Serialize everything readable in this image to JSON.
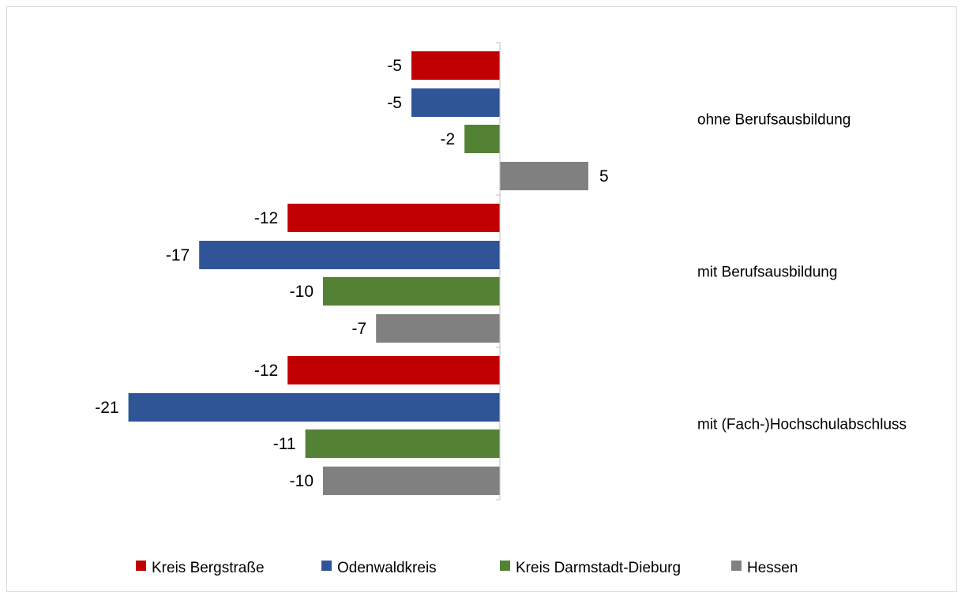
{
  "chart_data": {
    "type": "bar",
    "orientation": "horizontal",
    "categories": [
      "ohne Berufsausbildung",
      "mit Berufsausbildung",
      "mit (Fach-)Hochschulabschluss"
    ],
    "series": [
      {
        "name": "Kreis Bergstraße",
        "color": "#c00000",
        "values": [
          -5,
          -12,
          -12
        ]
      },
      {
        "name": "Odenwaldkreis",
        "color": "#2f5597",
        "values": [
          -5,
          -17,
          -21
        ]
      },
      {
        "name": "Kreis Darmstadt-Dieburg",
        "color": "#548235",
        "values": [
          -2,
          -10,
          -11
        ]
      },
      {
        "name": "Hessen",
        "color": "#808080",
        "values": [
          5,
          -7,
          -10
        ]
      }
    ],
    "data_labels": true,
    "grid": false,
    "legend_position": "bottom"
  }
}
